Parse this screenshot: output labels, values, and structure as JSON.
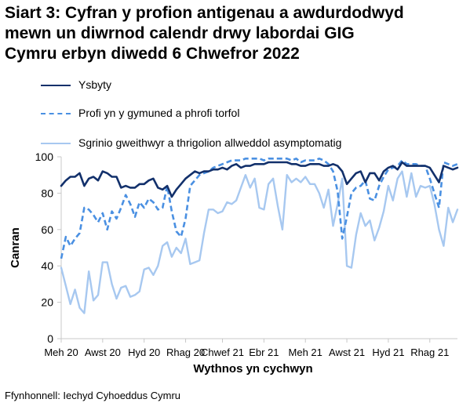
{
  "title_lines": [
    "Siart 3: Cyfran y profion antigenau a awdurdodwyd",
    "mewn un diwrnod calendr drwy labordai GIG",
    "Cymru erbyn diwedd 6 Chwefror 2022"
  ],
  "source": "Ffynhonnell: Iechyd Cyhoeddus Cymru",
  "colors": {
    "ysbyty": "#12306b",
    "profi": "#4a90e2",
    "sgrinio": "#a7c8f0",
    "axis": "#c8c8c8"
  },
  "chart_data": {
    "type": "line",
    "title": "Siart 3: Cyfran y profion antigenau a awdurdodwyd mewn un diwrnod calendr drwy labordai GIG Cymru erbyn diwedd 6 Chwefror 2022",
    "xlabel": "Wythnos yn cychwyn",
    "ylabel": "Canran",
    "ylim": [
      0,
      100
    ],
    "yticks": [
      0,
      20,
      40,
      60,
      80,
      100
    ],
    "grid": false,
    "legend_position": "top",
    "x_tick_labels": [
      "Meh 20",
      "Awst 20",
      "Hyd 20",
      "Rhag 20",
      "Chwef 21",
      "Ebr 21",
      "Meh 21",
      "Awst 21",
      "Hyd 21",
      "Rhag 21"
    ],
    "x_tick_index": [
      0,
      9,
      18,
      27,
      35,
      44,
      53,
      62,
      71,
      80
    ],
    "series": [
      {
        "name": "Ysbyty",
        "style": "solid",
        "values": [
          84,
          87,
          89,
          89,
          91,
          84,
          88,
          89,
          87,
          92,
          91,
          89,
          89,
          83,
          84,
          83,
          83,
          85,
          85,
          87,
          88,
          83,
          82,
          84,
          78,
          82,
          85,
          88,
          90,
          92,
          91,
          92,
          92,
          93,
          93,
          94,
          93,
          95,
          96,
          94,
          95,
          95,
          96,
          96,
          96,
          97,
          97,
          97,
          97,
          97,
          96,
          96,
          95,
          95,
          96,
          96,
          96,
          95,
          95,
          96,
          95,
          92,
          85,
          88,
          91,
          92,
          86,
          91,
          91,
          87,
          92,
          94,
          95,
          93,
          97,
          95,
          95,
          95,
          95,
          95,
          94,
          90,
          86,
          95,
          94,
          93,
          94
        ]
      },
      {
        "name": "Profi yn y gymuned a phrofi torfol",
        "style": "dashed",
        "values": [
          44,
          56,
          51,
          55,
          58,
          72,
          71,
          68,
          64,
          69,
          60,
          70,
          66,
          72,
          79,
          74,
          67,
          75,
          72,
          77,
          75,
          71,
          72,
          84,
          70,
          59,
          56,
          66,
          84,
          87,
          90,
          91,
          92,
          94,
          95,
          96,
          97,
          98,
          98,
          98,
          99,
          99,
          99,
          99,
          98,
          99,
          99,
          99,
          99,
          99,
          98,
          99,
          97,
          98,
          98,
          98,
          99,
          98,
          96,
          92,
          81,
          55,
          67,
          80,
          83,
          84,
          87,
          77,
          76,
          84,
          89,
          93,
          94,
          95,
          98,
          96,
          96,
          96,
          95,
          95,
          88,
          80,
          72,
          97,
          96,
          95,
          96
        ]
      },
      {
        "name": "Sgrinio gweithwyr a thrigolion allweddol asymptomatig",
        "style": "solid",
        "values": [
          39,
          29,
          19,
          27,
          17,
          14,
          37,
          21,
          24,
          42,
          42,
          30,
          22,
          28,
          29,
          23,
          24,
          26,
          38,
          39,
          35,
          40,
          51,
          53,
          45,
          50,
          47,
          55,
          41,
          42,
          43,
          58,
          71,
          71,
          69,
          70,
          75,
          74,
          76,
          83,
          90,
          83,
          88,
          72,
          71,
          85,
          88,
          73,
          60,
          90,
          86,
          88,
          86,
          89,
          85,
          85,
          80,
          72,
          82,
          62,
          74,
          88,
          40,
          39,
          57,
          69,
          62,
          65,
          54,
          61,
          70,
          84,
          76,
          88,
          92,
          78,
          91,
          78,
          84,
          83,
          84,
          74,
          60,
          51,
          72,
          64,
          71
        ]
      }
    ]
  }
}
